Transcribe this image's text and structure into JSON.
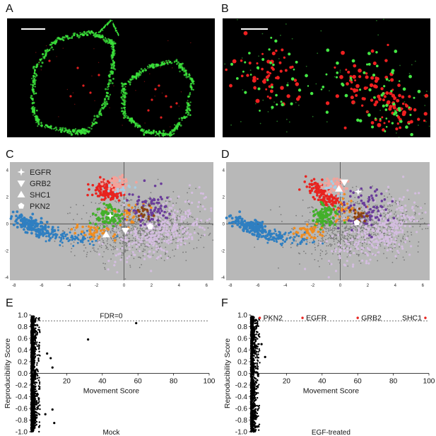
{
  "panels": {
    "A": "A",
    "B": "B",
    "C": "C",
    "D": "D",
    "E": "E",
    "F": "F"
  },
  "scatter": {
    "x_ticks": [
      -8,
      -6,
      -4,
      -2,
      0,
      2,
      4,
      6
    ],
    "y_ticks": [
      -4,
      -2,
      0,
      2,
      4
    ],
    "legend": [
      {
        "name": "EGFR",
        "shape": "star"
      },
      {
        "name": "GRB2",
        "shape": "triangle-down"
      },
      {
        "name": "SHC1",
        "shape": "triangle-up"
      },
      {
        "name": "PKN2",
        "shape": "pentagon"
      }
    ],
    "colors": {
      "background": "#b8b8b8",
      "grey": "#7a7a7a",
      "blue": "#2f7fc1",
      "red": "#e8231f",
      "pink": "#f2a39b",
      "green": "#43b02a",
      "orange": "#f08c1f",
      "purple": "#6a3d9a",
      "lilac": "#d4bde0",
      "brown": "#8b4513",
      "lightblue": "#a6cde3"
    },
    "markers_C": {
      "EGFR": [
        -1.0,
        0.6
      ],
      "GRB2": [
        0.1,
        -0.5
      ],
      "SHC1": [
        -1.3,
        -0.8
      ],
      "PKN2": [
        1.9,
        -0.2
      ]
    },
    "markers_D": {
      "EGFR": [
        1.3,
        2.4
      ],
      "GRB2": [
        0.3,
        3.1
      ],
      "SHC1": [
        -0.1,
        2.6
      ],
      "PKN2": [
        1.2,
        0.1
      ]
    }
  },
  "chart_data": [
    {
      "type": "scatter",
      "panel": "E",
      "title": "Mock",
      "xlabel": "Movement Score",
      "ylabel": "Reproducibility Score",
      "xlim": [
        0,
        100
      ],
      "ylim": [
        -1.0,
        1.0
      ],
      "x_ticks": [
        20,
        40,
        60,
        80,
        100
      ],
      "y_ticks": [
        -1.0,
        -0.8,
        -0.6,
        -0.4,
        -0.2,
        0.0,
        0.2,
        0.4,
        0.6,
        0.8,
        1.0
      ],
      "threshold": {
        "y": 0.9,
        "label": "FDR=0"
      },
      "outliers": [
        [
          59,
          0.86
        ],
        [
          32,
          0.58
        ],
        [
          9,
          0.34
        ],
        [
          11,
          0.26
        ],
        [
          12,
          0.1
        ],
        [
          13,
          -0.85
        ],
        [
          12,
          -0.62
        ],
        [
          8,
          -0.7
        ]
      ]
    },
    {
      "type": "scatter",
      "panel": "F",
      "title": "EGF-treated",
      "xlabel": "Movement Score",
      "ylabel": "Reproducibility Score",
      "xlim": [
        0,
        100
      ],
      "ylim": [
        -1.0,
        1.0
      ],
      "x_ticks": [
        20,
        40,
        60,
        80,
        100
      ],
      "y_ticks": [
        -1.0,
        -0.8,
        -0.6,
        -0.4,
        -0.2,
        0.0,
        0.2,
        0.4,
        0.6,
        0.8,
        1.0
      ],
      "threshold": {
        "y": 0.9,
        "label": ""
      },
      "highlighted": [
        {
          "name": "PKN2",
          "x": 5,
          "y": 0.95
        },
        {
          "name": "EGFR",
          "x": 29,
          "y": 0.95
        },
        {
          "name": "GRB2",
          "x": 60,
          "y": 0.95
        },
        {
          "name": "SHC1",
          "x": 98,
          "y": 0.95
        }
      ],
      "outliers": [
        [
          8,
          0.28
        ],
        [
          6,
          0.5
        ]
      ]
    }
  ]
}
